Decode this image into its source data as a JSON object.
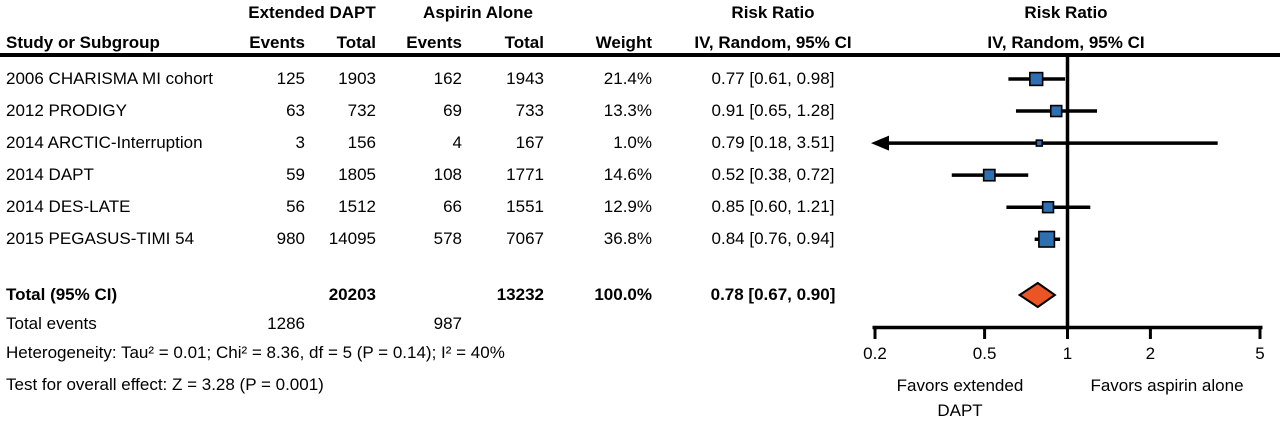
{
  "table": {
    "group_extended": "Extended DAPT",
    "group_aspirin": "Aspirin Alone",
    "header_study": "Study or Subgroup",
    "header_events": "Events",
    "header_total": "Total",
    "header_weight": "Weight",
    "rr_header_line1": "Risk Ratio",
    "rr_header_line2": "IV, Random, 95% CI",
    "plot_header_line1": "Risk Ratio",
    "plot_header_line2": "IV, Random, 95% CI",
    "rows": [
      {
        "name": "2006 CHARISMA MI cohort",
        "events_extended": "125",
        "total_extended": "1903",
        "events_aspirin": "162",
        "total_aspirin": "1943",
        "weight": "21.4%",
        "risk_ratio_ci": "0.77 [0.61, 0.98]"
      },
      {
        "name": "2012 PRODIGY",
        "events_extended": "63",
        "total_extended": "732",
        "events_aspirin": "69",
        "total_aspirin": "733",
        "weight": "13.3%",
        "risk_ratio_ci": "0.91 [0.65, 1.28]"
      },
      {
        "name": "2014 ARCTIC-Interruption",
        "events_extended": "3",
        "total_extended": "156",
        "events_aspirin": "4",
        "total_aspirin": "167",
        "weight": "1.0%",
        "risk_ratio_ci": "0.79 [0.18, 3.51]"
      },
      {
        "name": "2014 DAPT",
        "events_extended": "59",
        "total_extended": "1805",
        "events_aspirin": "108",
        "total_aspirin": "1771",
        "weight": "14.6%",
        "risk_ratio_ci": "0.52 [0.38, 0.72]"
      },
      {
        "name": "2014 DES-LATE",
        "events_extended": "56",
        "total_extended": "1512",
        "events_aspirin": "66",
        "total_aspirin": "1551",
        "weight": "12.9%",
        "risk_ratio_ci": "0.85 [0.60, 1.21]"
      },
      {
        "name": "2015 PEGASUS-TIMI 54",
        "events_extended": "980",
        "total_extended": "14095",
        "events_aspirin": "578",
        "total_aspirin": "7067",
        "weight": "36.8%",
        "risk_ratio_ci": "0.84 [0.76, 0.94]"
      }
    ],
    "total_row": {
      "label": "Total (95% CI)",
      "total_extended": "20203",
      "total_aspirin": "13232",
      "weight": "100.0%",
      "risk_ratio_ci": "0.78 [0.67, 0.90]"
    },
    "total_events": {
      "label": "Total events",
      "extended": "1286",
      "aspirin": "987"
    },
    "heterogeneity": "Heterogeneity: Tau² = 0.01; Chi² = 8.36, df = 5 (P = 0.14); I² = 40%",
    "overall_effect": "Test for overall effect:  Z = 3.28 (P = 0.001)"
  },
  "axis": {
    "tick_labels": [
      "0.2",
      "0.5",
      "1",
      "2",
      "5"
    ],
    "favors_left_line1": "Favors extended",
    "favors_left_line2": "DAPT",
    "favors_right": "Favors aspirin alone"
  },
  "colors": {
    "marker_square": "#2D6FB0",
    "total_diamond": "#EB5424",
    "line": "#000000"
  },
  "chart_data": {
    "type": "scatter",
    "subtype": "forest_plot",
    "title": "Risk Ratio  IV, Random, 95% CI",
    "x_scale": "log",
    "xlim": [
      0.2,
      5
    ],
    "x_ticks": [
      0.2,
      0.5,
      1,
      2,
      5
    ],
    "null_line": 1,
    "studies": [
      {
        "name": "2006 CHARISMA MI cohort",
        "rr": 0.77,
        "ci_low": 0.61,
        "ci_high": 0.98,
        "weight_pct": 21.4
      },
      {
        "name": "2012 PRODIGY",
        "rr": 0.91,
        "ci_low": 0.65,
        "ci_high": 1.28,
        "weight_pct": 13.3
      },
      {
        "name": "2014 ARCTIC-Interruption",
        "rr": 0.79,
        "ci_low": 0.18,
        "ci_high": 3.51,
        "weight_pct": 1.0
      },
      {
        "name": "2014 DAPT",
        "rr": 0.52,
        "ci_low": 0.38,
        "ci_high": 0.72,
        "weight_pct": 14.6
      },
      {
        "name": "2014 DES-LATE",
        "rr": 0.85,
        "ci_low": 0.6,
        "ci_high": 1.21,
        "weight_pct": 12.9
      },
      {
        "name": "2015 PEGASUS-TIMI 54",
        "rr": 0.84,
        "ci_low": 0.76,
        "ci_high": 0.94,
        "weight_pct": 36.8
      }
    ],
    "total": {
      "label": "Total (95% CI)",
      "rr": 0.78,
      "ci_low": 0.67,
      "ci_high": 0.9,
      "weight_pct": 100.0
    },
    "heterogeneity": {
      "tau2": 0.01,
      "chi2": 8.36,
      "df": 5,
      "p": 0.14,
      "i2_pct": 40
    },
    "overall_effect": {
      "z": 3.28,
      "p": 0.001
    },
    "favors_left": "Favors extended DAPT",
    "favors_right": "Favors aspirin alone",
    "legend_position": "none",
    "grid": false
  }
}
